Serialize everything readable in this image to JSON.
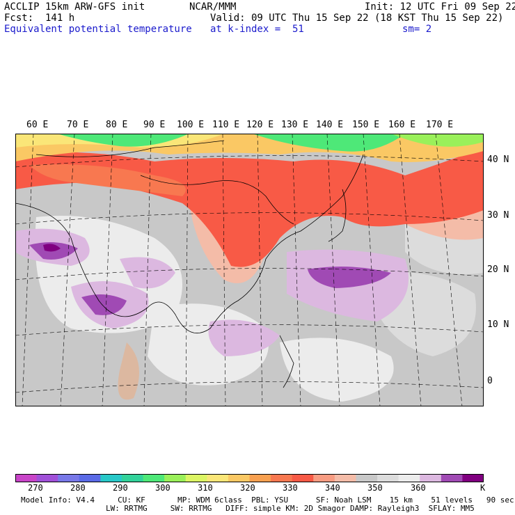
{
  "header": {
    "left_line1": "ACCLIP 15km ARW-GFS init",
    "left_line2": "Fcst:  141 h",
    "left_line3": "Equivalent potential temperature",
    "center_line1": "NCAR/MMM",
    "center_line2": "Valid: 09 UTC Thu 15 Sep 22 (18 KST Thu 15 Sep 22)",
    "center_line3": "at k-index =  51",
    "right_line1": "Init: 12 UTC Fri 09 Sep 22",
    "right_line3": "sm= 2"
  },
  "map": {
    "lon_labels": [
      "60 E",
      "70 E",
      "80 E",
      "90 E",
      "100 E",
      "110 E",
      "120 E",
      "130 E",
      "140 E",
      "150 E",
      "160 E",
      "170 E"
    ],
    "lat_labels": [
      "40 N",
      "30 N",
      "20 N",
      "10 N",
      "0"
    ]
  },
  "colorbar": {
    "colors": [
      "#c844c8",
      "#a050d8",
      "#7878e8",
      "#5a6ae6",
      "#28c8c8",
      "#32d29a",
      "#4ee878",
      "#9af05a",
      "#dcf564",
      "#fae678",
      "#fac864",
      "#f8a050",
      "#f87850",
      "#f85a46",
      "#f89c82",
      "#f4bca8",
      "#c8c8c8",
      "#dcdcdc",
      "#ececec",
      "#dcb8e0",
      "#a04ab4",
      "#800080"
    ],
    "tick_labels": [
      "270",
      "280",
      "290",
      "300",
      "310",
      "320",
      "330",
      "340",
      "350",
      "360"
    ],
    "unit": "K"
  },
  "footer": {
    "line1": "Model Info: V4.4     CU: KF       MP: WDM 6class  PBL: YSU      SF: Noah LSM    15 km    51 levels   90 sec",
    "line2": "LW: RRTMG     SW: RRTMG   DIFF: simple KM: 2D Smagor DAMP: Rayleigh3  SFLAY: MM5"
  }
}
